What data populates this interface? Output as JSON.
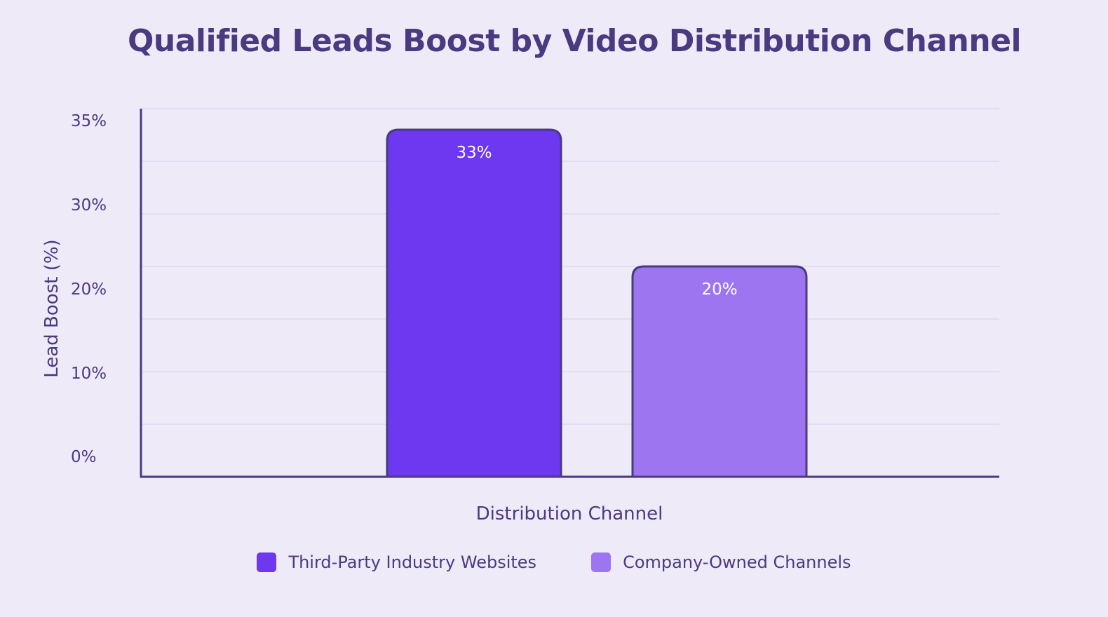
{
  "header": {
    "icon": "chart-increasing-icon",
    "title": "Qualified Leads Boost by Video Distribution Channel"
  },
  "colors": {
    "background": "#efeaf8",
    "text": "#4a3a80",
    "grid": "#ddd7f5",
    "axis": "#4a3a80",
    "bar_outline": "#4a3a80"
  },
  "chart_data": {
    "type": "bar",
    "title": "Qualified Leads Boost by Video Distribution Channel",
    "xlabel": "Distribution Channel",
    "ylabel": "Lead Boost (%)",
    "ylim": [
      0,
      35
    ],
    "yticks": [
      0,
      10,
      20,
      30,
      35
    ],
    "ytick_labels": [
      "0%",
      "10%",
      "20%",
      "30%",
      "35%"
    ],
    "grid": true,
    "legend_position": "bottom",
    "categories": [
      "Third-Party Industry Websites",
      "Company-Owned Channels"
    ],
    "values": [
      33,
      20
    ],
    "value_labels": [
      "33%",
      "20%"
    ],
    "colors": [
      "#6d38f0",
      "#9d75f0"
    ]
  }
}
